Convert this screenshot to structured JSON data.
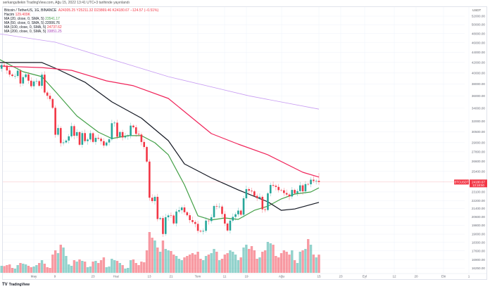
{
  "header": {
    "published": "serkangultekin TradingView.com, Ağu 15, 2022 13:41 UTC+3 tarihinde yayınlandı"
  },
  "legend": {
    "symbol": "Bitcoin / TetherUS, 1G, BINANCE",
    "open": "A24305.25",
    "high": "Y25211.32",
    "low": "D23869.46",
    "close": "K24180.67",
    "change": "−124.57 (−0.51%)",
    "volume_label": "Hacim",
    "volume_value": "129.409K",
    "ma": [
      {
        "label": "MA (20, close, 0, SMA, 5)",
        "value": "23541.17"
      },
      {
        "label": "MA (50, close, 0, SMA, 5)",
        "value": "22006.76"
      },
      {
        "label": "MA (100, close, 0, SMA, 5)",
        "value": "24737.62"
      },
      {
        "label": "MA (200, close, 0, SMA, 5)",
        "value": "33851.25"
      }
    ]
  },
  "price_tag": {
    "symbol": "BTCUSDT",
    "price": "24180.67",
    "countdown": "13:18:50"
  },
  "logo": {
    "text": "TradingView"
  },
  "colors": {
    "up": "#26a69a",
    "down": "#f23645",
    "ma20": "#43a047",
    "ma50": "#131722",
    "ma100": "#f0245a",
    "ma200": "#c79bf2"
  },
  "chart_data": {
    "type": "candlestick",
    "symbol": "BTCUSDT",
    "interval": "1D",
    "y_scale": "log",
    "y_unit": "USDT",
    "grid": true,
    "y_ticks": [
      "52000.00",
      "50000.00",
      "48000.00",
      "46000.00",
      "44000.00",
      "42000.00",
      "40000.00",
      "38000.00",
      "36000.00",
      "34000.00",
      "32000.00",
      "30500.00",
      "29000.00",
      "27800.00",
      "26600.00",
      "25400.00",
      "23100.00",
      "22200.00",
      "21400.00",
      "20600.00",
      "19800.00",
      "19000.00",
      "18300.00",
      "17600.00",
      "16900.00",
      "16250.00"
    ],
    "x_ticks": [
      "May",
      "9",
      "23",
      "Haz",
      "13",
      "21",
      "Tem",
      "11",
      "19",
      "Ağu",
      "15",
      "23",
      "Eyl",
      "12",
      "20",
      "Eki",
      "1"
    ],
    "first_open": 40380,
    "last_candle": {
      "open": 24305.25,
      "high": 25211.32,
      "low": 23869.46,
      "close": 24180.67
    },
    "dates": [
      "2022-04-18",
      "2022-04-19",
      "2022-04-20",
      "2022-04-21",
      "2022-04-22",
      "2022-04-23",
      "2022-04-24",
      "2022-04-25",
      "2022-04-26",
      "2022-04-27",
      "2022-04-28",
      "2022-04-29",
      "2022-04-30",
      "2022-05-01",
      "2022-05-02",
      "2022-05-03",
      "2022-05-04",
      "2022-05-05",
      "2022-05-06",
      "2022-05-07",
      "2022-05-08",
      "2022-05-09",
      "2022-05-10",
      "2022-05-11",
      "2022-05-12",
      "2022-05-13",
      "2022-05-14",
      "2022-05-15",
      "2022-05-16",
      "2022-05-17",
      "2022-05-18",
      "2022-05-19",
      "2022-05-20",
      "2022-05-21",
      "2022-05-22",
      "2022-05-23",
      "2022-05-24",
      "2022-05-25",
      "2022-05-26",
      "2022-05-27",
      "2022-05-28",
      "2022-05-29",
      "2022-05-30",
      "2022-05-31",
      "2022-06-01",
      "2022-06-02",
      "2022-06-03",
      "2022-06-04",
      "2022-06-05",
      "2022-06-06",
      "2022-06-07",
      "2022-06-08",
      "2022-06-09",
      "2022-06-10",
      "2022-06-11",
      "2022-06-12",
      "2022-06-13",
      "2022-06-14",
      "2022-06-15",
      "2022-06-16",
      "2022-06-17",
      "2022-06-18",
      "2022-06-19",
      "2022-06-20",
      "2022-06-21",
      "2022-06-22",
      "2022-06-23",
      "2022-06-24",
      "2022-06-25",
      "2022-06-26",
      "2022-06-27",
      "2022-06-28",
      "2022-06-29",
      "2022-06-30",
      "2022-07-01",
      "2022-07-02",
      "2022-07-03",
      "2022-07-04",
      "2022-07-05",
      "2022-07-06",
      "2022-07-07",
      "2022-07-08",
      "2022-07-09",
      "2022-07-10",
      "2022-07-11",
      "2022-07-12",
      "2022-07-13",
      "2022-07-14",
      "2022-07-15",
      "2022-07-16",
      "2022-07-17",
      "2022-07-18",
      "2022-07-19",
      "2022-07-20",
      "2022-07-21",
      "2022-07-22",
      "2022-07-23",
      "2022-07-24",
      "2022-07-25",
      "2022-07-26",
      "2022-07-27",
      "2022-07-28",
      "2022-07-29",
      "2022-07-30",
      "2022-07-31",
      "2022-08-01",
      "2022-08-02",
      "2022-08-03",
      "2022-08-04",
      "2022-08-05",
      "2022-08-06",
      "2022-08-07",
      "2022-08-08",
      "2022-08-09",
      "2022-08-10",
      "2022-08-11",
      "2022-08-12",
      "2022-08-13",
      "2022-08-14",
      "2022-08-15"
    ],
    "close": [
      40800,
      41500,
      41370,
      40480,
      39710,
      39450,
      39450,
      40430,
      38110,
      39240,
      39740,
      38600,
      37630,
      38470,
      38520,
      37710,
      39690,
      36550,
      36010,
      35470,
      34060,
      30080,
      31020,
      28940,
      29030,
      29280,
      29860,
      31300,
      29930,
      30440,
      28720,
      30310,
      29200,
      29430,
      30290,
      29100,
      29650,
      29540,
      29200,
      28620,
      29020,
      29450,
      31720,
      31800,
      29800,
      30450,
      29700,
      29860,
      29910,
      31370,
      31130,
      30200,
      30110,
      29090,
      28420,
      26570,
      22490,
      22140,
      22580,
      20380,
      20470,
      19020,
      20550,
      20720,
      20710,
      19970,
      21100,
      21230,
      21500,
      21030,
      20740,
      20280,
      20100,
      19930,
      19300,
      19240,
      19300,
      20230,
      20190,
      20550,
      21640,
      21590,
      21590,
      20860,
      19960,
      19330,
      20230,
      20580,
      20830,
      21190,
      20790,
      22430,
      23400,
      23230,
      23160,
      22680,
      22450,
      22580,
      21310,
      21250,
      22950,
      23850,
      23770,
      23640,
      23290,
      23270,
      22980,
      22820,
      22620,
      23310,
      22960,
      23180,
      23810,
      23160,
      23950,
      23930,
      24440,
      24300,
      24305,
      24180.67
    ],
    "volume_k": [
      45,
      50,
      48,
      55,
      60,
      35,
      30,
      55,
      70,
      65,
      60,
      50,
      40,
      45,
      55,
      70,
      90,
      65,
      40,
      35,
      130,
      160,
      140,
      200,
      180,
      120,
      60,
      50,
      90,
      80,
      95,
      85,
      80,
      40,
      45,
      80,
      85,
      70,
      90,
      110,
      40,
      45,
      100,
      90,
      85,
      70,
      55,
      30,
      35,
      90,
      95,
      70,
      55,
      80,
      75,
      160,
      290,
      250,
      230,
      180,
      150,
      230,
      170,
      160,
      155,
      130,
      120,
      100,
      90,
      110,
      120,
      130,
      140,
      130,
      150,
      100,
      90,
      120,
      130,
      140,
      170,
      150,
      90,
      100,
      130,
      140,
      160,
      150,
      130,
      90,
      110,
      180,
      200,
      170,
      190,
      160,
      100,
      110,
      150,
      160,
      220,
      210,
      200,
      120,
      110,
      140,
      160,
      150,
      130,
      160,
      90,
      70,
      150,
      160,
      170,
      240,
      200,
      130,
      110,
      129.409
    ],
    "moving_averages": [
      {
        "name": "MA 20",
        "color": "#43a047",
        "points": [
          [
            "2022-04-18",
            42650
          ],
          [
            "2022-04-27",
            40240
          ],
          [
            "2022-05-04",
            39330
          ],
          [
            "2022-05-09",
            36740
          ],
          [
            "2022-05-17",
            32800
          ],
          [
            "2022-05-25",
            30430
          ],
          [
            "2022-05-30",
            29560
          ],
          [
            "2022-06-05",
            29950
          ],
          [
            "2022-06-10",
            29950
          ],
          [
            "2022-06-15",
            28990
          ],
          [
            "2022-06-20",
            27420
          ],
          [
            "2022-06-26",
            23860
          ],
          [
            "2022-07-01",
            20690
          ],
          [
            "2022-07-06",
            20290
          ],
          [
            "2022-07-11",
            20480
          ],
          [
            "2022-07-16",
            20350
          ],
          [
            "2022-07-22",
            21220
          ],
          [
            "2022-07-27",
            21630
          ],
          [
            "2022-08-01",
            22360
          ],
          [
            "2022-08-06",
            22870
          ],
          [
            "2022-08-12",
            23090
          ],
          [
            "2022-08-15",
            23541.17
          ]
        ]
      },
      {
        "name": "MA 50",
        "color": "#131722",
        "points": [
          [
            "2022-04-18",
            41980
          ],
          [
            "2022-05-04",
            41980
          ],
          [
            "2022-05-09",
            40890
          ],
          [
            "2022-05-20",
            38330
          ],
          [
            "2022-05-30",
            35000
          ],
          [
            "2022-06-10",
            32470
          ],
          [
            "2022-06-20",
            29270
          ],
          [
            "2022-06-26",
            26290
          ],
          [
            "2022-07-06",
            24640
          ],
          [
            "2022-07-16",
            23310
          ],
          [
            "2022-07-27",
            22070
          ],
          [
            "2022-08-01",
            21220
          ],
          [
            "2022-08-06",
            21350
          ],
          [
            "2022-08-15",
            22006.76
          ]
        ]
      },
      {
        "name": "MA 100",
        "color": "#f0245a",
        "points": [
          [
            "2022-04-18",
            41290
          ],
          [
            "2022-05-04",
            41020
          ],
          [
            "2022-05-15",
            40500
          ],
          [
            "2022-05-28",
            38570
          ],
          [
            "2022-06-07",
            37720
          ],
          [
            "2022-06-20",
            35570
          ],
          [
            "2022-07-06",
            30240
          ],
          [
            "2022-07-16",
            28800
          ],
          [
            "2022-07-27",
            27420
          ],
          [
            "2022-08-09",
            25290
          ],
          [
            "2022-08-15",
            24737.62
          ]
        ]
      },
      {
        "name": "MA 200",
        "color": "#c79bf2",
        "points": [
          [
            "2022-04-18",
            47950
          ],
          [
            "2022-05-09",
            46120
          ],
          [
            "2022-06-20",
            39330
          ],
          [
            "2022-07-20",
            36000
          ],
          [
            "2022-08-15",
            33851.25
          ]
        ]
      }
    ]
  }
}
